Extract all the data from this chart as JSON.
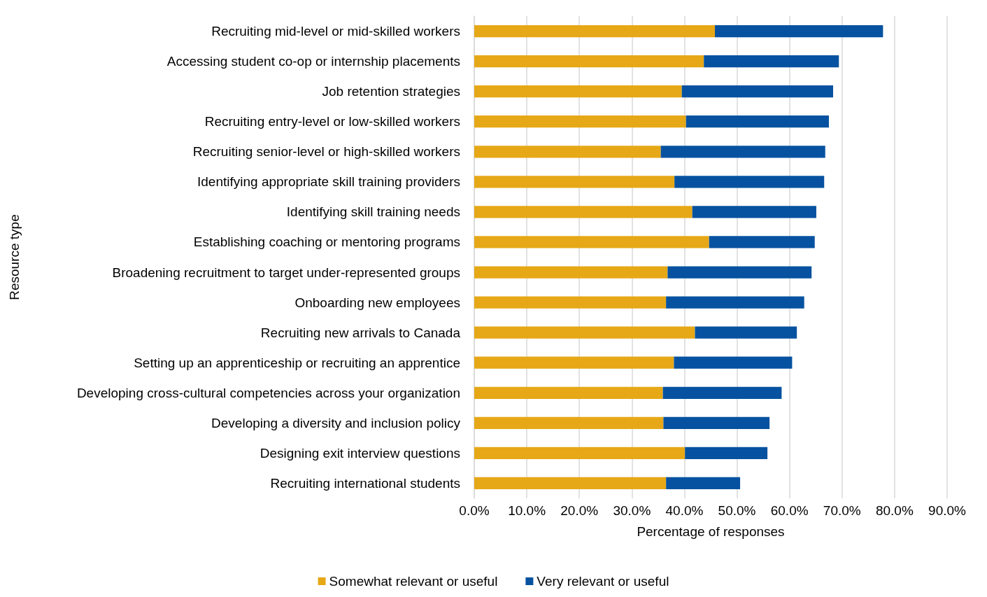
{
  "chart_data": {
    "type": "bar",
    "orientation": "horizontal",
    "stacked": true,
    "xlabel": "Percentage of responses",
    "ylabel": "Resource type",
    "categories": [
      "Recruiting mid-level or mid-skilled workers",
      "Accessing student co-op or internship placements",
      "Job retention strategies",
      "Recruiting entry-level or low-skilled workers",
      "Recruiting senior-level or high-skilled workers",
      "Identifying appropriate skill training providers",
      "Identifying skill training needs",
      "Establishing coaching or mentoring programs",
      "Broadening recruitment to target under-represented groups",
      "Onboarding new employees",
      "Recruiting new arrivals to Canada",
      "Setting up an apprenticeship or recruiting an apprentice",
      "Developing cross-cultural competencies across your organization",
      "Developing a diversity and inclusion policy",
      "Designing exit interview questions",
      "Recruiting international students"
    ],
    "series": [
      {
        "name": "Somewhat relevant or useful",
        "color": "#e6a817",
        "values": [
          45.8,
          43.7,
          39.5,
          40.3,
          35.5,
          38.1,
          41.5,
          44.7,
          36.8,
          36.5,
          42.0,
          38.0,
          35.9,
          36.0,
          40.1,
          36.5
        ]
      },
      {
        "name": "Very relevant or useful",
        "color": "#0652a0",
        "values": [
          32.0,
          25.7,
          28.8,
          27.2,
          31.3,
          28.5,
          23.6,
          20.1,
          27.4,
          26.3,
          19.4,
          22.5,
          22.6,
          20.2,
          15.7,
          14.1
        ]
      }
    ],
    "xlim": [
      0,
      90
    ],
    "xticks": [
      {
        "value": 0,
        "label": "0.0%"
      },
      {
        "value": 10,
        "label": "10.0%"
      },
      {
        "value": 20,
        "label": "20.0%"
      },
      {
        "value": 30,
        "label": "30.0%"
      },
      {
        "value": 40,
        "label": "40.0%"
      },
      {
        "value": 50,
        "label": "50.0%"
      },
      {
        "value": 60,
        "label": "60.0%"
      },
      {
        "value": 70,
        "label": "70.0%"
      },
      {
        "value": 80,
        "label": "80.0%"
      },
      {
        "value": 90,
        "label": "90.0%"
      }
    ],
    "grid": "x",
    "legend": "bottom"
  }
}
